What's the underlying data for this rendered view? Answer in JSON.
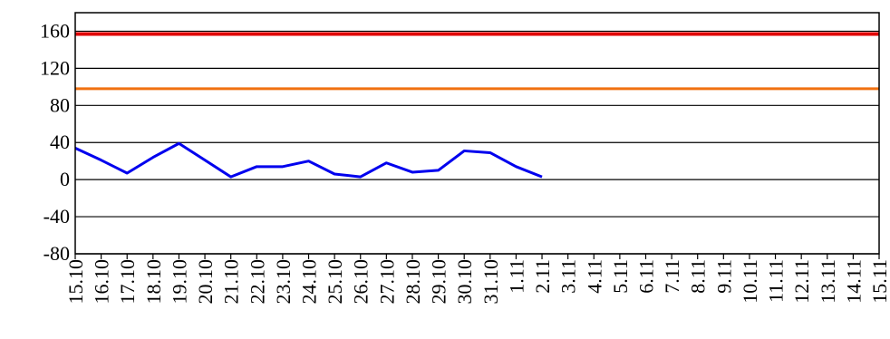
{
  "chart_data": {
    "type": "line",
    "categories": [
      "15.10",
      "16.10",
      "17.10",
      "18.10",
      "19.10",
      "20.10",
      "21.10",
      "22.10",
      "23.10",
      "24.10",
      "25.10",
      "26.10",
      "27.10",
      "28.10",
      "29.10",
      "30.10",
      "31.10",
      "1.11",
      "2.11",
      "3.11",
      "4.11",
      "5.11",
      "6.11",
      "7.11",
      "8.11",
      "9.11",
      "10.11",
      "11.11",
      "12.11",
      "13.11",
      "14.11",
      "15.11"
    ],
    "series": [
      {
        "color": "#e00000",
        "width": 4,
        "values": [
          157,
          157,
          157,
          157,
          157,
          157,
          157,
          157,
          157,
          157,
          157,
          157,
          157,
          157,
          157,
          157,
          157,
          157,
          157,
          157,
          157,
          157,
          157,
          157,
          157,
          157,
          157,
          157,
          157,
          157,
          157,
          157
        ]
      },
      {
        "color": "#f07010",
        "width": 3,
        "values": [
          98,
          98,
          98,
          98,
          98,
          98,
          98,
          98,
          98,
          98,
          98,
          98,
          98,
          98,
          98,
          98,
          98,
          98,
          98,
          98,
          98,
          98,
          98,
          98,
          98,
          98,
          98,
          98,
          98,
          98,
          98,
          98
        ]
      },
      {
        "color": "#0000ee",
        "width": 3,
        "values": [
          34,
          21,
          7,
          24,
          39,
          21,
          3,
          14,
          14,
          20,
          6,
          3,
          18,
          8,
          10,
          31,
          29,
          14,
          3,
          null,
          null,
          null,
          null,
          null,
          null,
          null,
          null,
          null,
          null,
          null,
          null,
          null
        ]
      }
    ],
    "ylim": [
      -80,
      180
    ],
    "yticks": [
      -80,
      -40,
      0,
      40,
      80,
      120,
      160
    ],
    "grid": true
  }
}
